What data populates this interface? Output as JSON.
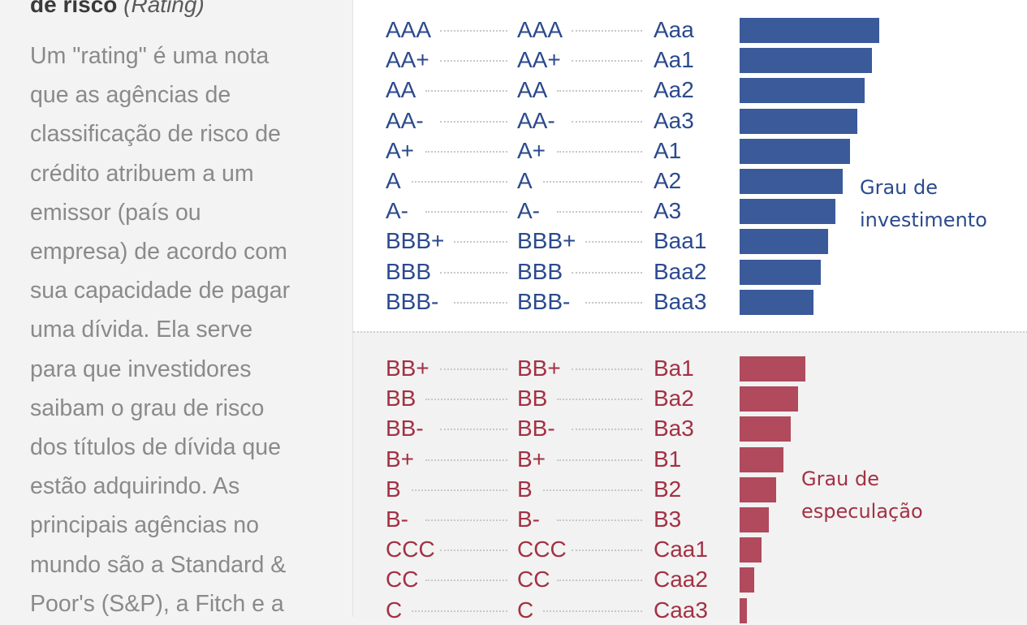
{
  "left": {
    "heading_bold": "de risco",
    "heading_italic": "(Rating)",
    "paragraph_lines": [
      "Um \"rating\" é uma nota",
      "que as agências de",
      "classificação de risco de",
      "crédito atribuem a um",
      "emissor (país ou",
      "empresa) de acordo com",
      "sua capacidade de pagar",
      "uma dívida. Ela serve",
      "para que investidores",
      "saibam o grau de risco",
      "dos títulos de dívida que",
      "estão adquirindo. As",
      "principais agências no",
      "mundo são a Standard &",
      "Poor's (S&P), a Fitch e a"
    ]
  },
  "chart_data": {
    "type": "bar",
    "orientation": "horizontal",
    "groups": [
      {
        "label_lines": [
          "Grau de",
          "investimento"
        ],
        "color": "#3a5a9a",
        "text_color": "#2b4a8e",
        "rows": [
          {
            "sp": "AAA",
            "fitch": "AAA",
            "moody": "Aaa",
            "value": 19
          },
          {
            "sp": "AA+",
            "fitch": "AA+",
            "moody": "Aa1",
            "value": 18
          },
          {
            "sp": "AA",
            "fitch": "AA",
            "moody": "Aa2",
            "value": 17
          },
          {
            "sp": "AA-",
            "fitch": "AA-",
            "moody": "Aa3",
            "value": 16
          },
          {
            "sp": "A+",
            "fitch": "A+",
            "moody": "A1",
            "value": 15
          },
          {
            "sp": "A",
            "fitch": "A",
            "moody": "A2",
            "value": 14
          },
          {
            "sp": "A-",
            "fitch": "A-",
            "moody": "A3",
            "value": 13
          },
          {
            "sp": "BBB+",
            "fitch": "BBB+",
            "moody": "Baa1",
            "value": 12
          },
          {
            "sp": "BBB",
            "fitch": "BBB",
            "moody": "Baa2",
            "value": 11
          },
          {
            "sp": "BBB-",
            "fitch": "BBB-",
            "moody": "Baa3",
            "value": 10
          }
        ]
      },
      {
        "label_lines": [
          "Grau de",
          "especulação"
        ],
        "color": "#b04a5c",
        "text_color": "#a33144",
        "rows": [
          {
            "sp": "BB+",
            "fitch": "BB+",
            "moody": "Ba1",
            "value": 9
          },
          {
            "sp": "BB",
            "fitch": "BB",
            "moody": "Ba2",
            "value": 8
          },
          {
            "sp": "BB-",
            "fitch": "BB-",
            "moody": "Ba3",
            "value": 7
          },
          {
            "sp": "B+",
            "fitch": "B+",
            "moody": "B1",
            "value": 6
          },
          {
            "sp": "B",
            "fitch": "B",
            "moody": "B2",
            "value": 5
          },
          {
            "sp": "B-",
            "fitch": "B-",
            "moody": "B3",
            "value": 4
          },
          {
            "sp": "CCC",
            "fitch": "CCC",
            "moody": "Caa1",
            "value": 3
          },
          {
            "sp": "CC",
            "fitch": "CC",
            "moody": "Caa2",
            "value": 2
          },
          {
            "sp": "C",
            "fitch": "C",
            "moody": "Caa3",
            "value": 1
          }
        ]
      }
    ]
  }
}
